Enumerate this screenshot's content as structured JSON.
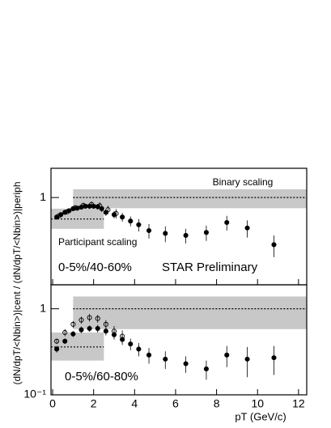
{
  "chart_data": [
    {
      "type": "scatter",
      "log_y": true,
      "xlim": [
        -0.08,
        12.4
      ],
      "ylim": [
        0.095,
        2.2
      ],
      "yticks": [
        1
      ],
      "annotations": [
        "Binary scaling",
        "Participant scaling",
        "0-5%/40-60%",
        "STAR Preliminary"
      ],
      "binary_band": {
        "x": [
          1,
          12.4
        ],
        "y": [
          0.75,
          1.25
        ],
        "line": 1
      },
      "participant_band": {
        "x": [
          -0.08,
          2.5
        ],
        "y": [
          0.43,
          0.74
        ],
        "line": 0.56
      },
      "series": [
        {
          "name": "filled",
          "color": "#000000",
          "marker": "filled",
          "x": [
            0.2,
            0.4,
            0.6,
            0.8,
            1.0,
            1.2,
            1.4,
            1.6,
            1.8,
            2.0,
            2.2,
            2.4,
            2.6,
            3.0,
            3.4,
            3.8,
            4.2,
            4.7,
            5.5,
            6.5,
            7.5,
            8.5,
            9.5,
            10.8
          ],
          "values": [
            0.59,
            0.63,
            0.67,
            0.7,
            0.74,
            0.75,
            0.77,
            0.79,
            0.79,
            0.79,
            0.78,
            0.74,
            0.67,
            0.63,
            0.59,
            0.53,
            0.48,
            0.41,
            0.38,
            0.36,
            0.39,
            0.51,
            0.44,
            0.28
          ],
          "errors": [
            0.03,
            0.03,
            0.03,
            0.03,
            0.04,
            0.04,
            0.04,
            0.05,
            0.05,
            0.05,
            0.06,
            0.06,
            0.06,
            0.06,
            0.07,
            0.07,
            0.08,
            0.08,
            0.08,
            0.07,
            0.08,
            0.1,
            0.1,
            0.08
          ]
        },
        {
          "name": "open",
          "color": "#000000",
          "marker": "open",
          "x": [
            0.3,
            0.7,
            1.1,
            1.5,
            1.9,
            2.3,
            2.7,
            3.1
          ],
          "values": [
            0.61,
            0.68,
            0.76,
            0.81,
            0.83,
            0.8,
            0.72,
            0.65
          ],
          "errors": [
            0.03,
            0.04,
            0.05,
            0.06,
            0.07,
            0.08,
            0.08,
            0.08
          ]
        }
      ]
    },
    {
      "type": "scatter",
      "log_y": true,
      "xlim": [
        -0.08,
        12.4
      ],
      "ylim": [
        0.1,
        1.9
      ],
      "yticks": [
        {
          "value": 0.1,
          "label": "10⁻¹"
        },
        1
      ],
      "xticks": [
        0,
        2,
        4,
        6,
        8,
        10,
        12
      ],
      "x_label": "pT (GeV/c)",
      "y_label": "(dN/dpT/<Nbin>)|cent / (dN/dpT/<Nbin>)|periph",
      "annotations": [
        "0-5%/60-80%"
      ],
      "binary_band": {
        "x": [
          1,
          12.4
        ],
        "y": [
          0.58,
          1.39
        ],
        "line": 1
      },
      "participant_band": {
        "x": [
          -0.08,
          2.5
        ],
        "y": [
          0.25,
          0.53
        ],
        "line": 0.36
      },
      "series": [
        {
          "name": "filled",
          "color": "#000000",
          "marker": "filled",
          "x": [
            0.2,
            0.6,
            1.0,
            1.4,
            1.8,
            2.2,
            2.6,
            3.0,
            3.4,
            3.8,
            4.2,
            4.7,
            5.5,
            6.5,
            7.5,
            8.5,
            9.5,
            10.8
          ],
          "values": [
            0.34,
            0.42,
            0.51,
            0.57,
            0.59,
            0.59,
            0.55,
            0.5,
            0.44,
            0.39,
            0.34,
            0.29,
            0.26,
            0.23,
            0.2,
            0.29,
            0.26,
            0.27
          ],
          "errors": [
            0.03,
            0.03,
            0.04,
            0.05,
            0.05,
            0.06,
            0.06,
            0.06,
            0.06,
            0.06,
            0.06,
            0.06,
            0.06,
            0.05,
            0.05,
            0.08,
            0.1,
            0.1
          ]
        },
        {
          "name": "open",
          "color": "#000000",
          "marker": "open",
          "x": [
            0.2,
            0.6,
            1.0,
            1.4,
            1.8,
            2.2,
            2.6,
            3.0,
            3.4
          ],
          "values": [
            0.42,
            0.53,
            0.66,
            0.74,
            0.79,
            0.77,
            0.66,
            0.55,
            0.48
          ],
          "errors": [
            0.03,
            0.05,
            0.06,
            0.07,
            0.08,
            0.08,
            0.08,
            0.08,
            0.08
          ]
        }
      ]
    }
  ]
}
